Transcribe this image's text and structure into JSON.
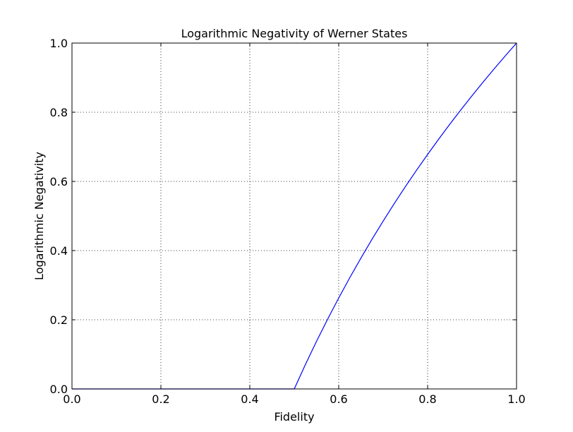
{
  "chart_data": {
    "type": "line",
    "title": "Logarithmic Negativity of Werner States",
    "xlabel": "Fidelity",
    "ylabel": "Logarithmic Negativity",
    "xlim": [
      0.0,
      1.0
    ],
    "ylim": [
      0.0,
      1.0
    ],
    "xticks": [
      "0.0",
      "0.2",
      "0.4",
      "0.6",
      "0.8",
      "1.0"
    ],
    "yticks": [
      "0.0",
      "0.2",
      "0.4",
      "0.6",
      "0.8",
      "1.0"
    ],
    "grid": true,
    "series": [
      {
        "color": "#0000ff",
        "x": [
          0.0,
          0.5,
          0.525,
          0.55,
          0.575,
          0.6,
          0.625,
          0.65,
          0.675,
          0.7,
          0.725,
          0.75,
          0.775,
          0.8,
          0.825,
          0.85,
          0.875,
          0.9,
          0.925,
          0.95,
          0.975,
          1.0
        ],
        "y": [
          0.0,
          0.0,
          0.0704,
          0.1375,
          0.2016,
          0.263,
          0.3219,
          0.3785,
          0.433,
          0.4854,
          0.5361,
          0.585,
          0.6323,
          0.6781,
          0.7225,
          0.7655,
          0.8074,
          0.848,
          0.8875,
          0.926,
          0.9635,
          1.0
        ]
      }
    ]
  }
}
